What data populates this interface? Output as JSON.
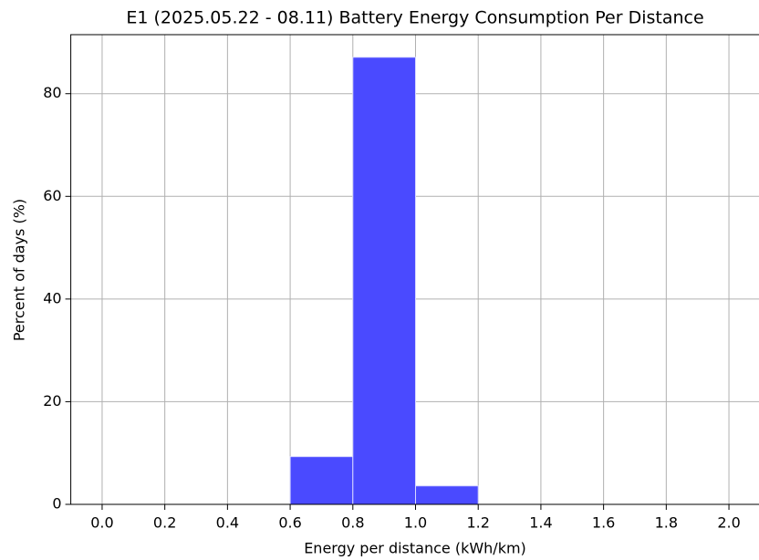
{
  "chart_data": {
    "type": "histogram",
    "title": "E1 (2025.05.22 - 08.11) Battery Energy Consumption Per Distance",
    "xlabel": "Energy per distance (kWh/km)",
    "ylabel": "Percent of days (%)",
    "bins": [
      0,
      0.2,
      0.4,
      0.6,
      0.8,
      1.0,
      1.2,
      1.4,
      1.6,
      1.8,
      2.0
    ],
    "values": [
      0,
      0,
      0,
      9.3,
      87.1,
      3.6,
      0,
      0,
      0,
      0
    ],
    "color": "#4a4aff",
    "xlim": [
      -0.1,
      2.1
    ],
    "ylim": [
      0,
      91.5
    ],
    "xticks": [
      {
        "value": 0,
        "label": "0.0"
      },
      {
        "value": 0.2,
        "label": "0.2"
      },
      {
        "value": 0.4,
        "label": "0.4"
      },
      {
        "value": 0.6,
        "label": "0.6"
      },
      {
        "value": 0.8,
        "label": "0.8"
      },
      {
        "value": 1.0,
        "label": "1.0"
      },
      {
        "value": 1.2,
        "label": "1.2"
      },
      {
        "value": 1.4,
        "label": "1.4"
      },
      {
        "value": 1.6,
        "label": "1.6"
      },
      {
        "value": 1.8,
        "label": "1.8"
      },
      {
        "value": 2.0,
        "label": "2.0"
      }
    ],
    "yticks": [
      0,
      20,
      40,
      60,
      80
    ],
    "grid": true
  }
}
